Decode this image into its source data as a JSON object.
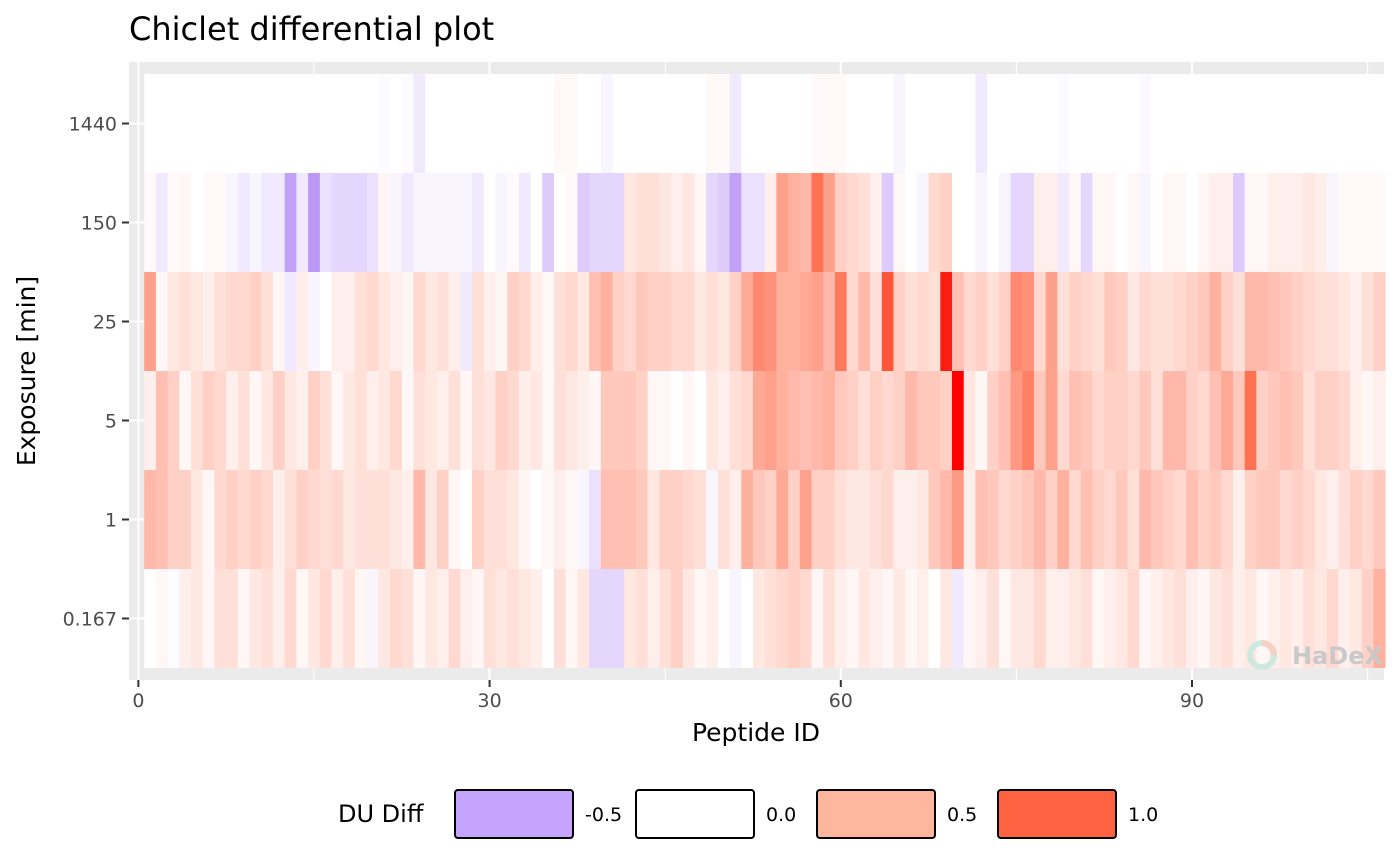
{
  "chart_data": {
    "type": "heatmap",
    "title": "Chiclet differential plot",
    "xlabel": "Peptide ID",
    "ylabel": "Exposure [min]",
    "xlim": [
      0,
      106
    ],
    "x_ticks": [
      0,
      30,
      60,
      90
    ],
    "y_categories": [
      "0.167",
      "1",
      "5",
      "25",
      "150",
      "1440"
    ],
    "grid": true,
    "legend": {
      "title": "DU Diff",
      "placement": "bottom",
      "entries": [
        {
          "value": -0.5,
          "label": "-0.5",
          "color": "#c4a4fc"
        },
        {
          "value": 0.0,
          "label": "0.0",
          "color": "#ffffff"
        },
        {
          "value": 0.5,
          "label": "0.5",
          "color": "#feb69e"
        },
        {
          "value": 1.0,
          "label": "1.0",
          "color": "#fe6240"
        }
      ]
    },
    "rows": [
      {
        "exposure": "1440",
        "values": [
          0,
          0,
          0,
          0,
          0,
          0,
          0,
          0,
          0,
          0,
          0,
          0,
          0,
          0,
          0,
          0,
          0,
          0,
          0,
          0,
          -0.02,
          0,
          -0.02,
          -0.1,
          0,
          0,
          0,
          0,
          0,
          0,
          0,
          0,
          0,
          0,
          0,
          0.03,
          0.04,
          0,
          0,
          -0.05,
          0,
          0,
          0,
          0,
          0,
          0,
          0,
          0,
          0.04,
          0.03,
          -0.1,
          0,
          0,
          0,
          0,
          0,
          0,
          0.03,
          0.04,
          0.03,
          0,
          0,
          0,
          0,
          -0.05,
          0,
          0,
          0,
          0,
          0,
          0,
          -0.1,
          0,
          0,
          0,
          0,
          0,
          0,
          -0.02,
          0,
          0,
          0,
          0,
          0,
          0,
          -0.03,
          0,
          0,
          0,
          0,
          0,
          0,
          0,
          0,
          0,
          0,
          0,
          0,
          0,
          0,
          0,
          0,
          0,
          0,
          0,
          0
        ]
      },
      {
        "exposure": "150",
        "values": [
          0.03,
          -0.1,
          0.03,
          0.05,
          0,
          0.03,
          0.03,
          -0.05,
          -0.1,
          -0.05,
          -0.1,
          -0.1,
          -0.45,
          -0.1,
          -0.5,
          -0.15,
          -0.2,
          -0.2,
          -0.2,
          -0.15,
          0.05,
          -0.05,
          -0.1,
          -0.05,
          -0.05,
          -0.05,
          -0.05,
          -0.05,
          -0.1,
          0,
          -0.05,
          0.03,
          -0.1,
          0,
          -0.25,
          0,
          0.03,
          -0.25,
          -0.2,
          -0.2,
          -0.2,
          0.15,
          0.2,
          0.2,
          0.15,
          0.1,
          0.15,
          0.05,
          -0.2,
          -0.25,
          -0.45,
          -0.15,
          -0.15,
          0.1,
          0.6,
          0.5,
          0.45,
          0.9,
          0.6,
          0.3,
          0.25,
          0.2,
          0.1,
          -0.25,
          0.05,
          0,
          -0.05,
          0.25,
          0.3,
          0,
          0,
          -0.05,
          0,
          -0.05,
          -0.2,
          -0.2,
          0.1,
          0.1,
          -0.1,
          0.05,
          -0.2,
          0.05,
          0.05,
          0,
          0.05,
          -0.05,
          0,
          0.05,
          0.05,
          0,
          0.05,
          0.1,
          0.1,
          -0.25,
          0.05,
          0.05,
          0.1,
          0.1,
          0.1,
          0.15,
          0.1,
          -0.05,
          0.03,
          0.03,
          0.03,
          0.03
        ]
      },
      {
        "exposure": "25",
        "values": [
          0.6,
          0.05,
          0.15,
          0.2,
          0.15,
          0.1,
          0.2,
          0.25,
          0.25,
          0.3,
          0.2,
          0.05,
          -0.1,
          0.1,
          -0.05,
          0,
          0.1,
          0.1,
          0.2,
          0.25,
          0.15,
          0.1,
          0.05,
          0.25,
          0.15,
          0.2,
          0.1,
          -0.1,
          0.2,
          0.1,
          0.05,
          0.3,
          0.25,
          0.1,
          0.05,
          0.2,
          0.25,
          0.15,
          0.4,
          0.5,
          0.3,
          0.25,
          0.35,
          0.3,
          0.3,
          0.25,
          0.25,
          0.15,
          0.2,
          0.15,
          0.3,
          0.55,
          0.75,
          0.7,
          0.5,
          0.5,
          0.55,
          0.6,
          0.45,
          0.85,
          0.25,
          0.45,
          0.2,
          1.1,
          0.3,
          0.2,
          0.25,
          0.2,
          1.5,
          0.4,
          0.25,
          0.3,
          0.2,
          0.3,
          0.75,
          0.7,
          0.25,
          0.6,
          0.2,
          0.3,
          0.25,
          0.2,
          0.35,
          0.3,
          0.15,
          0.25,
          0.2,
          0.2,
          0.25,
          0.3,
          0.35,
          0.5,
          0.3,
          0.2,
          0.45,
          0.45,
          0.4,
          0.35,
          0.3,
          0.25,
          0.2,
          0.2,
          0.15,
          0.1,
          0.2,
          0.3
        ]
      },
      {
        "exposure": "5",
        "values": [
          0.1,
          0.4,
          0.3,
          0.05,
          0.2,
          0.3,
          0.25,
          0.1,
          0.2,
          0.05,
          0.15,
          0.3,
          0.15,
          0.1,
          0.3,
          0.2,
          0.05,
          0.15,
          0.2,
          0.1,
          0.15,
          0.25,
          0.05,
          0.2,
          0.15,
          0.1,
          0.2,
          0.05,
          0.2,
          0.15,
          0.3,
          0.25,
          0.1,
          0.15,
          0.05,
          0.2,
          0.15,
          0.1,
          0.05,
          0.35,
          0.35,
          0.35,
          0.3,
          0.05,
          0.05,
          0,
          0.05,
          0,
          0.15,
          0.1,
          0.2,
          0.25,
          0.55,
          0.6,
          0.5,
          0.45,
          0.4,
          0.45,
          0.5,
          0.35,
          0.3,
          0.2,
          0.3,
          0.25,
          0.3,
          0.45,
          0.35,
          0.35,
          0.3,
          1.7,
          0.15,
          0.05,
          0.3,
          0.4,
          0.65,
          0.8,
          0.35,
          0.6,
          0.25,
          0.4,
          0.35,
          0.25,
          0.3,
          0.3,
          0.25,
          0.35,
          0.2,
          0.45,
          0.45,
          0.3,
          0.25,
          0.4,
          0.55,
          0.35,
          0.9,
          0.3,
          0.35,
          0.4,
          0.35,
          0.2,
          0.3,
          0.3,
          0.25,
          0.1,
          0.05,
          0.1
        ]
      },
      {
        "exposure": "1",
        "values": [
          0.45,
          0.4,
          0.3,
          0.3,
          0.15,
          0.05,
          0.25,
          0.3,
          0.25,
          0.3,
          0.25,
          0.1,
          0.2,
          0.3,
          0.25,
          0.2,
          0.25,
          0.15,
          0.2,
          0.2,
          0.2,
          0.15,
          0.1,
          0.45,
          0.15,
          0.3,
          0.05,
          0,
          0.3,
          0.2,
          0.2,
          0.15,
          0.05,
          0,
          0.05,
          0.1,
          0.05,
          -0.05,
          -0.15,
          0.4,
          0.4,
          0.4,
          0.35,
          0.15,
          0.3,
          0.3,
          0.25,
          0.2,
          -0.05,
          0.2,
          0.1,
          0.5,
          0.35,
          0.3,
          0.55,
          0.3,
          0.6,
          0.3,
          0.3,
          0.2,
          0.15,
          0.15,
          0.2,
          0.25,
          0.1,
          0.1,
          0.15,
          0.35,
          0.45,
          0.65,
          0.1,
          0.4,
          0.35,
          0.25,
          0.3,
          0.35,
          0.45,
          0.3,
          0.5,
          0.25,
          0.4,
          0.3,
          0.25,
          0.35,
          0.2,
          0.45,
          0.35,
          0.3,
          0.25,
          0.4,
          0.3,
          0.35,
          0.25,
          0.1,
          0.3,
          0.35,
          0.35,
          0.25,
          0.3,
          0.25,
          0.15,
          0.1,
          0.2,
          0.3,
          0.25,
          0.35
        ]
      },
      {
        "exposure": "0.167",
        "values": [
          0,
          0.05,
          -0.02,
          0.1,
          0.15,
          0.05,
          0.2,
          0.2,
          0.05,
          0.15,
          0.2,
          0.1,
          0.25,
          0.05,
          0.15,
          0.25,
          0.1,
          0.2,
          0.05,
          -0.05,
          0.15,
          0.25,
          0.2,
          0.05,
          0.15,
          0.1,
          0.25,
          0.1,
          0.05,
          0.2,
          0.15,
          0.2,
          0.15,
          0.1,
          0,
          0.2,
          0.05,
          0.15,
          -0.2,
          -0.2,
          -0.2,
          0.15,
          0.2,
          0.1,
          0.2,
          0.3,
          0.15,
          0.05,
          0.1,
          0,
          -0.05,
          0,
          0.15,
          0.2,
          0.25,
          0.3,
          0.25,
          0.05,
          0.2,
          0.1,
          0.05,
          0.15,
          0.1,
          0.05,
          0.15,
          0.05,
          0.1,
          0,
          0.15,
          -0.1,
          0.05,
          0.1,
          0.2,
          0.05,
          0.15,
          0.15,
          0.25,
          0.1,
          0.1,
          0.15,
          0.2,
          0.05,
          0.1,
          0.15,
          0.25,
          0.05,
          0.1,
          0.15,
          0.2,
          0.1,
          0.05,
          0.15,
          0.2,
          0.1,
          0.15,
          0.05,
          0.1,
          0.15,
          0.1,
          0.2,
          0.15,
          0.25,
          0.1,
          0.15,
          0.3,
          0.5
        ]
      }
    ],
    "watermark": "HaDeX"
  }
}
